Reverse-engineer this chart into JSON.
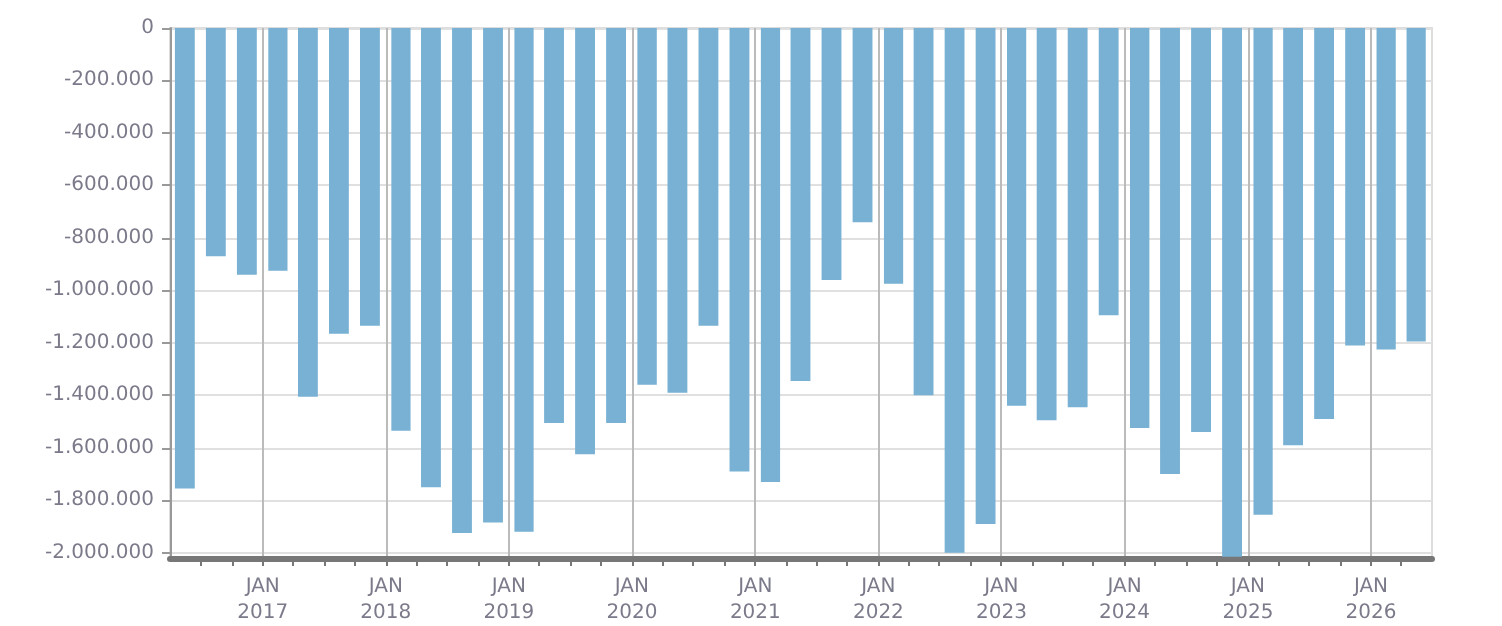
{
  "chart_data": {
    "type": "bar",
    "color": "#78b1d3",
    "x": [
      "2016-05-15",
      "2016-08-15",
      "2016-11-15",
      "2017-02-15",
      "2017-05-15",
      "2017-08-15",
      "2017-11-15",
      "2018-02-15",
      "2018-05-15",
      "2018-08-15",
      "2018-11-15",
      "2019-02-15",
      "2019-05-15",
      "2019-08-15",
      "2019-11-15",
      "2020-02-15",
      "2020-05-15",
      "2020-08-15",
      "2020-11-15",
      "2021-02-15",
      "2021-05-15",
      "2021-08-15",
      "2021-11-15",
      "2022-02-15",
      "2022-05-15",
      "2022-08-15",
      "2022-11-15",
      "2023-02-15",
      "2023-05-15",
      "2023-08-15",
      "2023-11-15",
      "2024-02-15",
      "2024-05-15",
      "2024-08-15",
      "2024-11-15",
      "2025-02-15",
      "2025-05-15",
      "2025-08-15",
      "2025-11-15",
      "2026-02-15",
      "2026-05-15"
    ],
    "values": [
      -1755000,
      -870000,
      -940000,
      -925000,
      -1405000,
      -1165000,
      -1135000,
      -1535000,
      -1750000,
      -1925000,
      -1885000,
      -1920000,
      -1505000,
      -1625000,
      -1505000,
      -1360000,
      -1390000,
      -1135000,
      -1690000,
      -1730000,
      -1345000,
      -960000,
      -740000,
      -975000,
      -1400000,
      -2000000,
      -1890000,
      -1440000,
      -1495000,
      -1445000,
      -1095000,
      -1525000,
      -1700000,
      -1540000,
      -2015000,
      -1855000,
      -1590000,
      -1490000,
      -1210000,
      -1225000,
      -1195000
    ],
    "xlim": [
      "2016-04",
      "2026-07"
    ],
    "xticks": [
      {
        "value": "2016-07",
        "label": null
      },
      {
        "value": "2016-10",
        "label": null
      },
      {
        "value": "2017-01",
        "label": "JAN\n2017"
      },
      {
        "value": "2017-04",
        "label": null
      },
      {
        "value": "2017-07",
        "label": null
      },
      {
        "value": "2017-10",
        "label": null
      },
      {
        "value": "2018-01",
        "label": "JAN\n2018"
      },
      {
        "value": "2018-04",
        "label": null
      },
      {
        "value": "2018-07",
        "label": null
      },
      {
        "value": "2018-10",
        "label": null
      },
      {
        "value": "2019-01",
        "label": "JAN\n2019"
      },
      {
        "value": "2019-04",
        "label": null
      },
      {
        "value": "2019-07",
        "label": null
      },
      {
        "value": "2019-10",
        "label": null
      },
      {
        "value": "2020-01",
        "label": "JAN\n2020"
      },
      {
        "value": "2020-04",
        "label": null
      },
      {
        "value": "2020-07",
        "label": null
      },
      {
        "value": "2020-10",
        "label": null
      },
      {
        "value": "2021-01",
        "label": "JAN\n2021"
      },
      {
        "value": "2021-04",
        "label": null
      },
      {
        "value": "2021-07",
        "label": null
      },
      {
        "value": "2021-10",
        "label": null
      },
      {
        "value": "2022-01",
        "label": "JAN\n2022"
      },
      {
        "value": "2022-04",
        "label": null
      },
      {
        "value": "2022-07",
        "label": null
      },
      {
        "value": "2022-10",
        "label": null
      },
      {
        "value": "2023-01",
        "label": "JAN\n2023"
      },
      {
        "value": "2023-04",
        "label": null
      },
      {
        "value": "2023-07",
        "label": null
      },
      {
        "value": "2023-10",
        "label": null
      },
      {
        "value": "2024-01",
        "label": "JAN\n2024"
      },
      {
        "value": "2024-04",
        "label": null
      },
      {
        "value": "2024-07",
        "label": null
      },
      {
        "value": "2024-10",
        "label": null
      },
      {
        "value": "2025-01",
        "label": "JAN\n2025"
      },
      {
        "value": "2025-04",
        "label": null
      },
      {
        "value": "2025-07",
        "label": null
      },
      {
        "value": "2025-10",
        "label": null
      },
      {
        "value": "2026-01",
        "label": "JAN\n2026"
      },
      {
        "value": "2026-04",
        "label": null
      }
    ],
    "ylim": [
      -2020000,
      0
    ],
    "yticks": [
      {
        "value": 0,
        "label": "0"
      },
      {
        "value": -200000,
        "label": "-200.000"
      },
      {
        "value": -400000,
        "label": "-400.000"
      },
      {
        "value": -600000,
        "label": "-600.000"
      },
      {
        "value": -800000,
        "label": "-800.000"
      },
      {
        "value": -1000000,
        "label": "-1.000.000"
      },
      {
        "value": -1200000,
        "label": "-1.200.000"
      },
      {
        "value": -1400000,
        "label": "-1.400.000"
      },
      {
        "value": -1600000,
        "label": "-1.600.000"
      },
      {
        "value": -1800000,
        "label": "-1.800.000"
      },
      {
        "value": -2000000,
        "label": "-2.000.000"
      }
    ],
    "grid": true
  }
}
